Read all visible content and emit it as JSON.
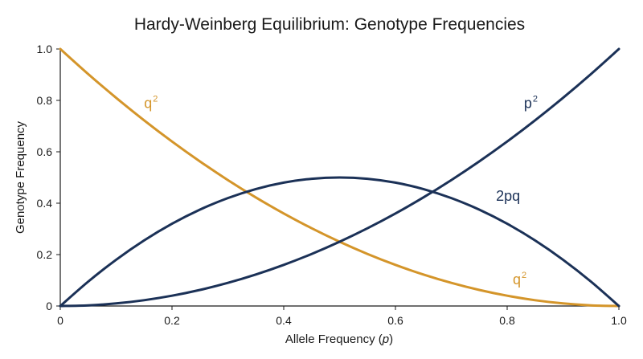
{
  "chart_data": {
    "type": "line",
    "title": "Hardy-Weinberg Equilibrium: Genotype Frequencies",
    "xlabel_prefix": "Allele Frequency (",
    "xlabel_var": "p",
    "xlabel_suffix": ")",
    "ylabel": "Genotype Frequency",
    "xlim": [
      0,
      1
    ],
    "ylim": [
      0,
      1
    ],
    "x_ticks": [
      "0",
      "0.2",
      "0.4",
      "0.6",
      "0.8",
      "1.0"
    ],
    "y_ticks": [
      "0",
      "0.2",
      "0.4",
      "0.6",
      "0.8",
      "1.0"
    ],
    "grid": false,
    "colors": {
      "gold": "#D4952A",
      "navy": "#1B3157"
    },
    "x": [
      0,
      0.05,
      0.1,
      0.15,
      0.2,
      0.25,
      0.3,
      0.35,
      0.4,
      0.45,
      0.5,
      0.55,
      0.6,
      0.65,
      0.7,
      0.75,
      0.8,
      0.85,
      0.9,
      0.95,
      1.0
    ],
    "series": [
      {
        "name": "q",
        "sup": "2",
        "color": "#D4952A",
        "values": [
          1,
          0.9025,
          0.81,
          0.7225,
          0.64,
          0.5625,
          0.49,
          0.4225,
          0.36,
          0.3025,
          0.25,
          0.2025,
          0.16,
          0.1225,
          0.09,
          0.0625,
          0.04,
          0.0225,
          0.01,
          0.0025,
          0
        ]
      },
      {
        "name": "p",
        "sup": "2",
        "color": "#1B3157",
        "values": [
          0,
          0.0025,
          0.01,
          0.0225,
          0.04,
          0.0625,
          0.09,
          0.1225,
          0.16,
          0.2025,
          0.25,
          0.3025,
          0.36,
          0.4225,
          0.49,
          0.5625,
          0.64,
          0.7225,
          0.81,
          0.9025,
          1
        ]
      },
      {
        "name": "2pq",
        "sup": "",
        "color": "#1B3157",
        "values": [
          0,
          0.095,
          0.18,
          0.255,
          0.32,
          0.375,
          0.42,
          0.455,
          0.48,
          0.495,
          0.5,
          0.495,
          0.48,
          0.455,
          0.42,
          0.375,
          0.32,
          0.255,
          0.18,
          0.095,
          0
        ]
      }
    ],
    "annotations": [
      {
        "series": 0,
        "text": "q",
        "sup": "2",
        "x": 0.15,
        "y": 0.77
      },
      {
        "series": 0,
        "text": "q",
        "sup": "2",
        "x": 0.81,
        "y": 0.085
      },
      {
        "series": 1,
        "text": "p",
        "sup": "2",
        "x": 0.83,
        "y": 0.77
      },
      {
        "series": 2,
        "text": "2pq",
        "sup": "",
        "x": 0.78,
        "y": 0.41
      }
    ]
  }
}
